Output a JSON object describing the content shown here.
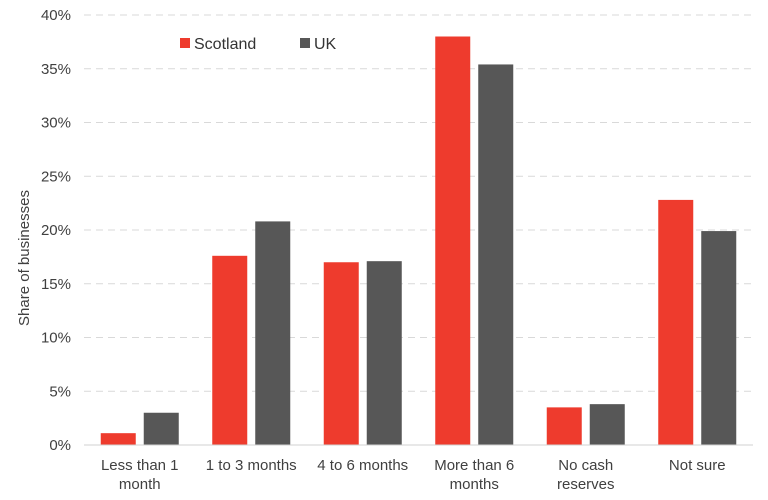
{
  "chart_data": {
    "type": "bar",
    "title": "",
    "xlabel": "",
    "ylabel": "Share of businesses",
    "categories": [
      [
        "Less than 1",
        "month"
      ],
      [
        "1 to 3 months"
      ],
      [
        "4 to 6 months"
      ],
      [
        "More than 6",
        "months"
      ],
      [
        "No cash",
        "reserves"
      ],
      [
        "Not sure"
      ]
    ],
    "series": [
      {
        "name": "Scotland",
        "color": "#EE3B2D",
        "values": [
          0.011,
          0.176,
          0.17,
          0.38,
          0.035,
          0.228
        ]
      },
      {
        "name": "UK",
        "color": "#575757",
        "values": [
          0.03,
          0.208,
          0.171,
          0.354,
          0.038,
          0.199
        ]
      }
    ],
    "ylim": [
      0,
      0.4
    ],
    "yticks": [
      0,
      0.05,
      0.1,
      0.15,
      0.2,
      0.25,
      0.3,
      0.35,
      0.4
    ],
    "ytick_labels": [
      "0%",
      "5%",
      "10%",
      "15%",
      "20%",
      "25%",
      "30%",
      "35%",
      "40%"
    ],
    "grid": true,
    "legend_position": "top-left"
  }
}
